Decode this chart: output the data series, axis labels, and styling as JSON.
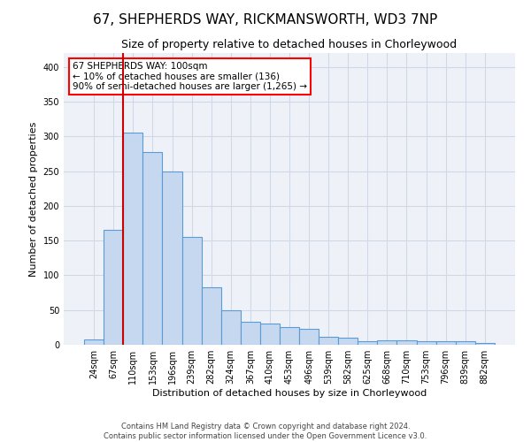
{
  "title": "67, SHEPHERDS WAY, RICKMANSWORTH, WD3 7NP",
  "subtitle": "Size of property relative to detached houses in Chorleywood",
  "xlabel": "Distribution of detached houses by size in Chorleywood",
  "ylabel": "Number of detached properties",
  "footer1": "Contains HM Land Registry data © Crown copyright and database right 2024.",
  "footer2": "Contains public sector information licensed under the Open Government Licence v3.0.",
  "categories": [
    "24sqm",
    "67sqm",
    "110sqm",
    "153sqm",
    "196sqm",
    "239sqm",
    "282sqm",
    "324sqm",
    "367sqm",
    "410sqm",
    "453sqm",
    "496sqm",
    "539sqm",
    "582sqm",
    "625sqm",
    "668sqm",
    "710sqm",
    "753sqm",
    "796sqm",
    "839sqm",
    "882sqm"
  ],
  "values": [
    8,
    165,
    305,
    278,
    250,
    155,
    83,
    50,
    33,
    30,
    25,
    23,
    12,
    10,
    5,
    6,
    6,
    5,
    5,
    5,
    3
  ],
  "bar_color": "#c5d8f0",
  "bar_edge_color": "#5b9bd5",
  "red_line_x": 1.5,
  "annotation_text": "67 SHEPHERDS WAY: 100sqm\n← 10% of detached houses are smaller (136)\n90% of semi-detached houses are larger (1,265) →",
  "annotation_box_color": "white",
  "annotation_box_edge_color": "red",
  "red_line_color": "#cc0000",
  "ylim": [
    0,
    420
  ],
  "yticks": [
    0,
    50,
    100,
    150,
    200,
    250,
    300,
    350,
    400
  ],
  "grid_color": "#d0d8e8",
  "bg_color": "#eef2f8",
  "title_fontsize": 11,
  "subtitle_fontsize": 9,
  "ylabel_fontsize": 8,
  "xlabel_fontsize": 8,
  "tick_fontsize": 7,
  "footer_fontsize": 6
}
